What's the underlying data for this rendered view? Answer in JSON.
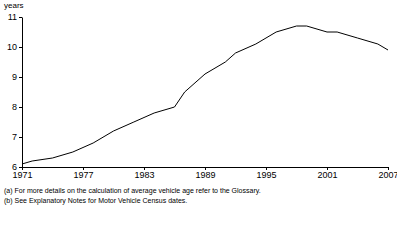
{
  "chart_data": {
    "type": "line",
    "y_label": "years",
    "notes": [
      "(a) For more details on the calculation of average vehicle age refer to the Glossary.",
      "(b) See Explanatory Notes for Motor Vehicle Census dates."
    ],
    "x": [
      1971,
      1972,
      1974,
      1976,
      1978,
      1980,
      1982,
      1984,
      1986,
      1987,
      1989,
      1991,
      1992,
      1994,
      1996,
      1998,
      1999,
      2001,
      2002,
      2004,
      2006,
      2007
    ],
    "values": [
      6.1,
      6.2,
      6.3,
      6.5,
      6.8,
      7.2,
      7.5,
      7.8,
      8.0,
      8.5,
      9.1,
      9.5,
      9.8,
      10.1,
      10.5,
      10.7,
      10.7,
      10.5,
      10.5,
      10.3,
      10.1,
      9.9
    ],
    "color": "#000000",
    "xlim": [
      1971,
      2007
    ],
    "xticks": [
      1971,
      1977,
      1983,
      1989,
      1995,
      2001,
      2007
    ],
    "ylim": [
      6,
      11
    ],
    "yticks": [
      6,
      7,
      8,
      9,
      10,
      11
    ],
    "grid": false
  }
}
